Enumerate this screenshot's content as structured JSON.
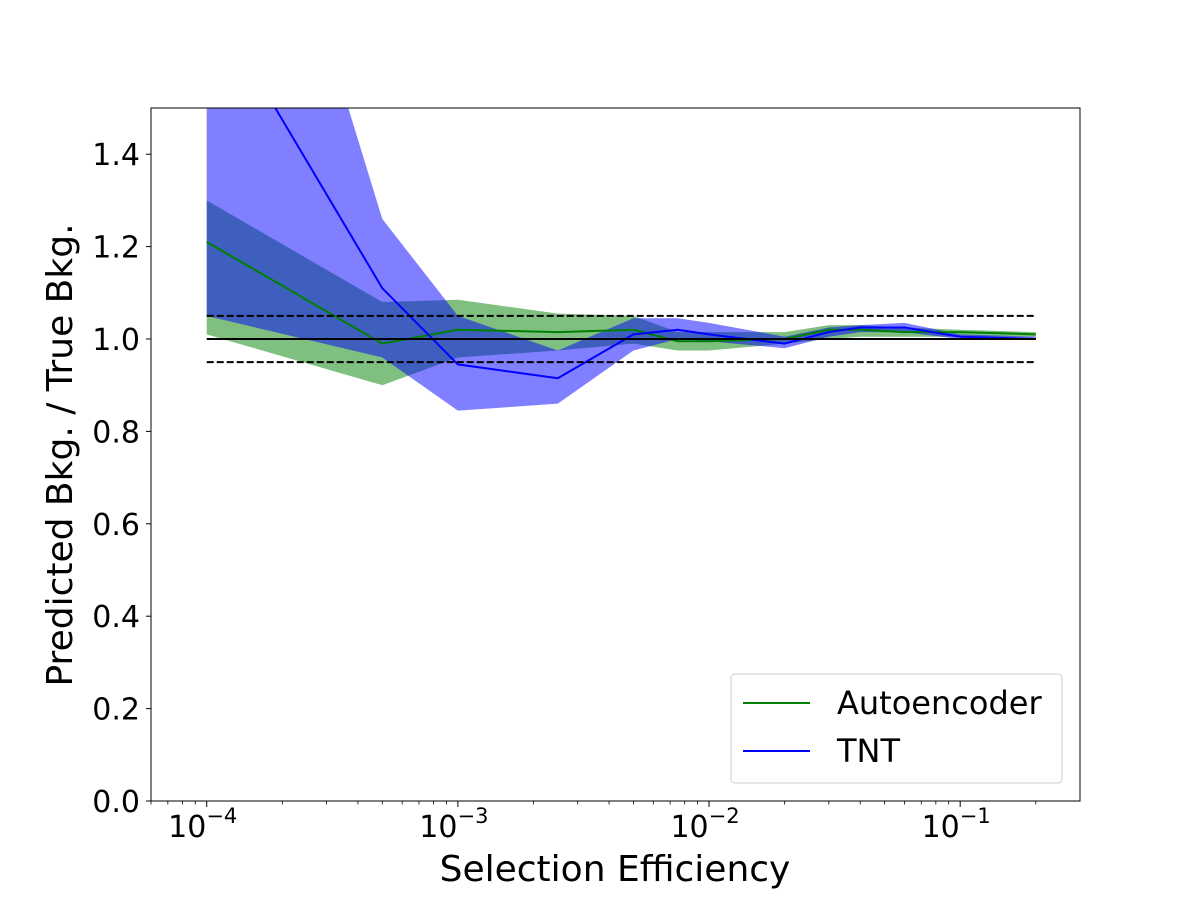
{
  "chart_data": {
    "type": "line",
    "xlabel": "Selection Efficiency",
    "ylabel": "Predicted Bkg. / True Bkg.",
    "x_scale": "log",
    "xlim": [
      6e-05,
      0.3
    ],
    "ylim": [
      0.0,
      1.5
    ],
    "y_ticks": [
      0.0,
      0.2,
      0.4,
      0.6,
      0.8,
      1.0,
      1.2,
      1.4
    ],
    "y_tick_labels": [
      "0.0",
      "0.2",
      "0.4",
      "0.6",
      "0.8",
      "1.0",
      "1.2",
      "1.4"
    ],
    "x_ticks": [
      0.0001,
      0.001,
      0.01,
      0.1
    ],
    "x_tick_labels": [
      {
        "base": "10",
        "exp": "−4"
      },
      {
        "base": "10",
        "exp": "−3"
      },
      {
        "base": "10",
        "exp": "−2"
      },
      {
        "base": "10",
        "exp": "−1"
      }
    ],
    "grid": false,
    "legend_position": "lower-right",
    "reference_lines": [
      {
        "y": 1.0,
        "style": "solid",
        "color": "#000000",
        "x_range": [
          0.0001,
          0.2
        ]
      },
      {
        "y": 1.05,
        "style": "dashed",
        "color": "#000000",
        "x_range": [
          0.0001,
          0.2
        ]
      },
      {
        "y": 0.95,
        "style": "dashed",
        "color": "#000000",
        "x_range": [
          0.0001,
          0.2
        ]
      }
    ],
    "series": [
      {
        "name": "Autoencoder",
        "color": "#008000",
        "band_color": "#008000",
        "band_opacity": 0.5,
        "x": [
          0.0001,
          0.0005,
          0.001,
          0.0025,
          0.005,
          0.0075,
          0.01,
          0.02,
          0.03,
          0.04,
          0.06,
          0.1,
          0.2
        ],
        "y": [
          1.21,
          0.99,
          1.02,
          1.015,
          1.02,
          0.995,
          0.995,
          1.0,
          1.02,
          1.02,
          1.015,
          1.015,
          1.01
        ],
        "lower": [
          1.01,
          0.9,
          0.96,
          0.975,
          0.99,
          0.975,
          0.975,
          0.99,
          1.0,
          1.005,
          1.005,
          1.005,
          1.005
        ],
        "upper": [
          1.3,
          1.08,
          1.085,
          1.055,
          1.05,
          1.015,
          1.015,
          1.015,
          1.03,
          1.03,
          1.025,
          1.02,
          1.015
        ]
      },
      {
        "name": "TNT",
        "color": "#0000ff",
        "band_color": "#0000ff",
        "band_opacity": 0.5,
        "x": [
          0.0001,
          0.0005,
          0.001,
          0.0025,
          0.005,
          0.0075,
          0.01,
          0.02,
          0.03,
          0.04,
          0.06,
          0.1,
          0.2
        ],
        "y": [
          1.75,
          1.11,
          0.945,
          0.915,
          1.01,
          1.02,
          1.01,
          0.99,
          1.015,
          1.025,
          1.025,
          1.005,
          1.0
        ],
        "lower": [
          1.05,
          0.96,
          0.845,
          0.86,
          0.975,
          1.0,
          0.995,
          0.98,
          1.005,
          1.015,
          1.015,
          1.0,
          0.998
        ],
        "upper": [
          2.5,
          1.26,
          1.05,
          0.975,
          1.045,
          1.045,
          1.035,
          1.005,
          1.025,
          1.03,
          1.035,
          1.01,
          1.005
        ]
      }
    ]
  }
}
